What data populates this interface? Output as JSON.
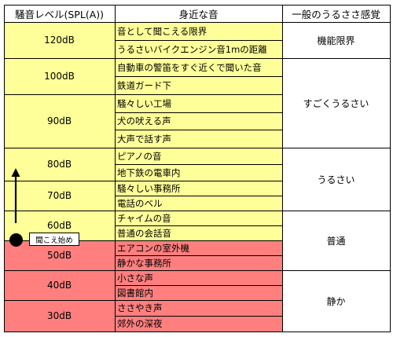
{
  "headers": {
    "level": "騒音レベル(SPL(A))",
    "sound": "身近な音",
    "category": "一般のうるささ感覚"
  },
  "levels": [
    "120dB",
    "100dB",
    "90dB",
    "80dB",
    "70dB",
    "60dB",
    "50dB",
    "40dB",
    "30dB"
  ],
  "sounds": [
    "音として聞こえる限界",
    "うるさいバイクエンジン音1mの距離",
    "自動車の警笛をすぐ近くで聞いた音",
    "鉄道ガード下",
    "騒々しい工場",
    "犬の吠える声",
    "大声で話す声",
    "ピアノの音",
    "地下鉄の電車内",
    "騒々しい事務所",
    "電話のベル",
    "チャイムの音",
    "普通の会話音",
    "エアコンの室外機",
    "静かな事務所",
    "小さな声",
    "図書館内",
    "ささやき声",
    "郊外の深夜"
  ],
  "categories": [
    "機能限界",
    "すごくうるさい",
    "うるさい",
    "普通",
    "静か"
  ],
  "annotation": {
    "threshold_label": "聞こえ始め"
  },
  "colors": {
    "audible_zone": "#ffff99",
    "quiet_zone": "#ff7f7f",
    "lines": "#000000"
  }
}
